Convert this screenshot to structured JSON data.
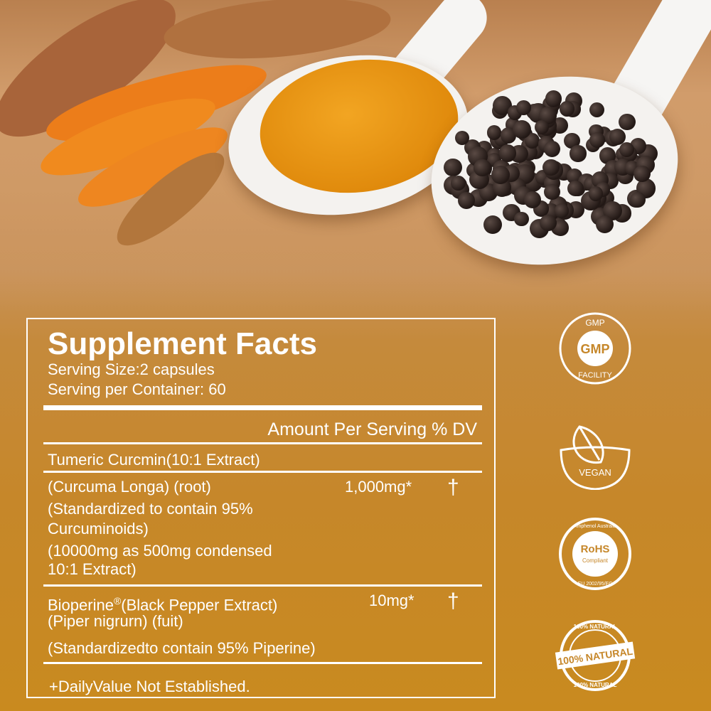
{
  "facts": {
    "title": "Supplement Facts",
    "serving_size": "Serving Size:2 capsules",
    "servings_per_container": "Serving per Container: 60",
    "column_header": "Amount Per Serving % DV",
    "section": "Tumeric Curcmin(10:1 Extract)",
    "ingredients": [
      {
        "lines": [
          "(Curcuma Longa) (root)",
          "(Standardized to contain 95%",
          "Curcuminoids)",
          "(10000mg as 500mg condensed",
          "10:1 Extract)"
        ],
        "amount": "1,000mg*",
        "dv": "†"
      },
      {
        "name": "Bioperine",
        "mark": "®",
        "lines": [
          "(Black Pepper Extract)",
          "(Piper nigrurn) (fuit)",
          "(Standardizedto contain 95% Piperine)"
        ],
        "amount": "10mg*",
        "dv": "†"
      }
    ],
    "footnote": "+DailyValue Not Established."
  },
  "badges": {
    "gmp": {
      "top": "GMP",
      "center": "GMP",
      "bottom": "FACILITY"
    },
    "vegan": {
      "label": "VEGAN"
    },
    "rohs": {
      "top": "Amphenol Australia",
      "center": "RoHS",
      "sub": "Compliant",
      "bottom": "EU 2002/95/EC"
    },
    "natural": {
      "top": "100% NATURAL",
      "center": "100% NATURAL",
      "bottom": "100% NATURAL"
    }
  },
  "colors": {
    "background": "#c6872a",
    "text": "#ffffff"
  }
}
